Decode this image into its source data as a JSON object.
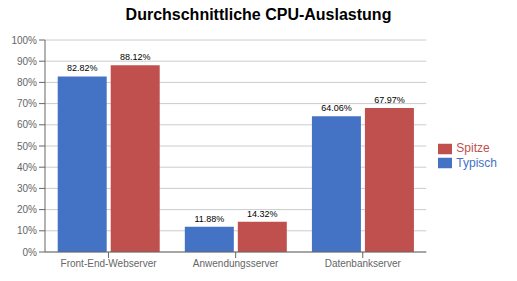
{
  "chart_data": {
    "type": "bar",
    "title": "Durchschnittliche CPU-Auslastung",
    "categories": [
      "Front-End-Webserver",
      "Anwendungsserver",
      "Datenbankserver"
    ],
    "series": [
      {
        "name": "Typisch",
        "color": "#4472C4",
        "values": [
          82.82,
          11.88,
          64.06
        ],
        "value_labels": [
          "82.82%",
          "11.88%",
          "64.06%"
        ]
      },
      {
        "name": "Spitze",
        "color": "#C0504D",
        "values": [
          88.12,
          14.32,
          67.97
        ],
        "value_labels": [
          "88.12%",
          "14.32%",
          "67.97%"
        ]
      }
    ],
    "ylim": [
      0,
      100
    ],
    "yticks": [
      {
        "value": 0,
        "label": "0%"
      },
      {
        "value": 10,
        "label": "10%"
      },
      {
        "value": 20,
        "label": "20%"
      },
      {
        "value": 30,
        "label": "30%"
      },
      {
        "value": 40,
        "label": "40%"
      },
      {
        "value": 50,
        "label": "50%"
      },
      {
        "value": 60,
        "label": "60%"
      },
      {
        "value": 70,
        "label": "70%"
      },
      {
        "value": 80,
        "label": "80%"
      },
      {
        "value": 90,
        "label": "90%"
      },
      {
        "value": 100,
        "label": "100%"
      }
    ],
    "grid": true,
    "legend": "right",
    "data_labels": true
  }
}
